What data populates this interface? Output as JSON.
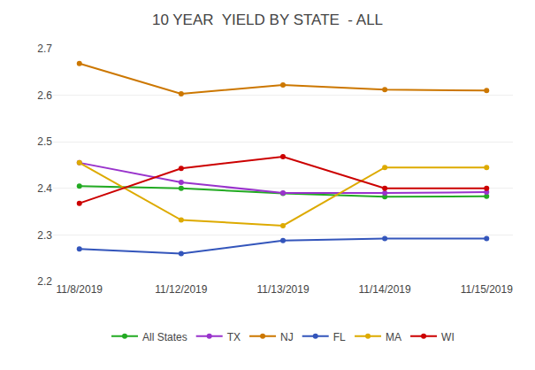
{
  "chart_data": {
    "type": "line",
    "title": "10 YEAR  YIELD BY STATE  - ALL",
    "categories": [
      "11/8/2019",
      "11/12/2019",
      "11/13/2019",
      "11/14/2019",
      "11/15/2019"
    ],
    "series": [
      {
        "name": "All States",
        "color": "#22aa22",
        "marker": "o",
        "values": [
          2.405,
          2.4,
          2.389,
          2.382,
          2.383
        ]
      },
      {
        "name": "TX",
        "color": "#9933cc",
        "marker": "o",
        "values": [
          2.455,
          2.413,
          2.39,
          2.39,
          2.392
        ]
      },
      {
        "name": "NJ",
        "color": "#cc7700",
        "marker": "o",
        "values": [
          2.668,
          2.603,
          2.622,
          2.612,
          2.61
        ]
      },
      {
        "name": "FL",
        "color": "#3355bb",
        "marker": "o",
        "values": [
          2.27,
          2.26,
          2.288,
          2.292,
          2.292
        ]
      },
      {
        "name": "MA",
        "color": "#ddaa00",
        "marker": "o",
        "values": [
          2.455,
          2.332,
          2.32,
          2.445,
          2.445
        ]
      },
      {
        "name": "WI",
        "color": "#cc0000",
        "marker": "o",
        "values": [
          2.368,
          2.443,
          2.468,
          2.4,
          2.4
        ]
      }
    ],
    "ylim": [
      2.2,
      2.7
    ],
    "yticks": [
      2.2,
      2.3,
      2.4,
      2.5,
      2.6,
      2.7
    ],
    "grid": true,
    "legend": "bottom"
  }
}
